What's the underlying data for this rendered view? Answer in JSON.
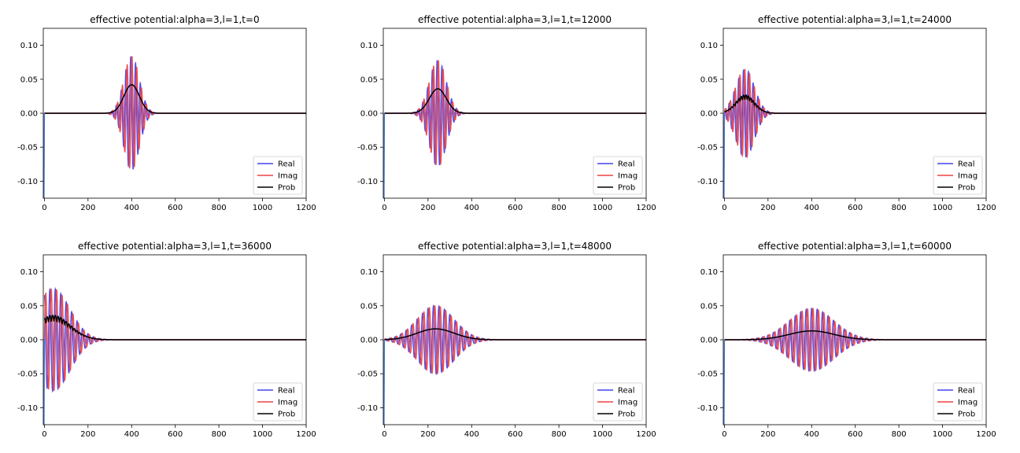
{
  "chart_data": [
    {
      "type": "line",
      "title": "effective potential:alpha=3,l=1,t=0",
      "xlim": [
        -5,
        1200
      ],
      "ylim": [
        -0.125,
        0.125
      ],
      "xticks": [
        0,
        200,
        400,
        600,
        800,
        1000,
        1200
      ],
      "yticks": [
        -0.1,
        -0.05,
        0.0,
        0.05,
        0.1
      ],
      "packet": {
        "center": 400,
        "width": 50,
        "amp": 0.084,
        "period": 22,
        "prob_peak": 0.042
      },
      "series": [
        {
          "name": "Real",
          "color": "#4444ee"
        },
        {
          "name": "Imag",
          "color": "#ee4444"
        },
        {
          "name": "Prob",
          "color": "#000000"
        }
      ],
      "legend": "lower right"
    },
    {
      "type": "line",
      "title": "effective potential:alpha=3,l=1,t=12000",
      "xlim": [
        -5,
        1200
      ],
      "ylim": [
        -0.125,
        0.125
      ],
      "xticks": [
        0,
        200,
        400,
        600,
        800,
        1000,
        1200
      ],
      "yticks": [
        -0.1,
        -0.05,
        0.0,
        0.05,
        0.1
      ],
      "packet": {
        "center": 245,
        "width": 55,
        "amp": 0.078,
        "period": 22,
        "prob_peak": 0.036
      },
      "series": [
        {
          "name": "Real",
          "color": "#4444ee"
        },
        {
          "name": "Imag",
          "color": "#ee4444"
        },
        {
          "name": "Prob",
          "color": "#000000"
        }
      ],
      "legend": "lower right"
    },
    {
      "type": "line",
      "title": "effective potential:alpha=3,l=1,t=24000",
      "xlim": [
        -5,
        1200
      ],
      "ylim": [
        -0.125,
        0.125
      ],
      "xticks": [
        0,
        200,
        400,
        600,
        800,
        1000,
        1200
      ],
      "yticks": [
        -0.1,
        -0.05,
        0.0,
        0.05,
        0.1
      ],
      "packet": {
        "center": 95,
        "width": 60,
        "amp": 0.065,
        "period": 22,
        "prob_peak": 0.027
      },
      "series": [
        {
          "name": "Real",
          "color": "#4444ee"
        },
        {
          "name": "Imag",
          "color": "#ee4444"
        },
        {
          "name": "Prob",
          "color": "#000000"
        }
      ],
      "legend": "lower right"
    },
    {
      "type": "line",
      "title": "effective potential:alpha=3,l=1,t=36000",
      "xlim": [
        -5,
        1200
      ],
      "ylim": [
        -0.125,
        0.125
      ],
      "xticks": [
        0,
        200,
        400,
        600,
        800,
        1000,
        1200
      ],
      "yticks": [
        -0.1,
        -0.05,
        0.0,
        0.05,
        0.1
      ],
      "packet": {
        "center": 40,
        "width": 110,
        "amp": 0.075,
        "period": 25,
        "prob_peak": 0.036
      },
      "series": [
        {
          "name": "Real",
          "color": "#4444ee"
        },
        {
          "name": "Imag",
          "color": "#ee4444"
        },
        {
          "name": "Prob",
          "color": "#000000"
        }
      ],
      "legend": "lower right"
    },
    {
      "type": "line",
      "title": "effective potential:alpha=3,l=1,t=48000",
      "xlim": [
        -5,
        1200
      ],
      "ylim": [
        -0.125,
        0.125
      ],
      "xticks": [
        0,
        200,
        400,
        600,
        800,
        1000,
        1200
      ],
      "yticks": [
        -0.1,
        -0.05,
        0.0,
        0.05,
        0.1
      ],
      "packet": {
        "center": 235,
        "width": 120,
        "amp": 0.05,
        "period": 25,
        "prob_peak": 0.016
      },
      "series": [
        {
          "name": "Real",
          "color": "#4444ee"
        },
        {
          "name": "Imag",
          "color": "#ee4444"
        },
        {
          "name": "Prob",
          "color": "#000000"
        }
      ],
      "legend": "lower right"
    },
    {
      "type": "line",
      "title": "effective potential:alpha=3,l=1,t=60000",
      "xlim": [
        -5,
        1200
      ],
      "ylim": [
        -0.125,
        0.125
      ],
      "xticks": [
        0,
        200,
        400,
        600,
        800,
        1000,
        1200
      ],
      "yticks": [
        -0.1,
        -0.05,
        0.0,
        0.05,
        0.1
      ],
      "packet": {
        "center": 400,
        "width": 145,
        "amp": 0.046,
        "period": 25,
        "prob_peak": 0.013
      },
      "series": [
        {
          "name": "Real",
          "color": "#4444ee"
        },
        {
          "name": "Imag",
          "color": "#ee4444"
        },
        {
          "name": "Prob",
          "color": "#000000"
        }
      ],
      "legend": "lower right"
    }
  ]
}
